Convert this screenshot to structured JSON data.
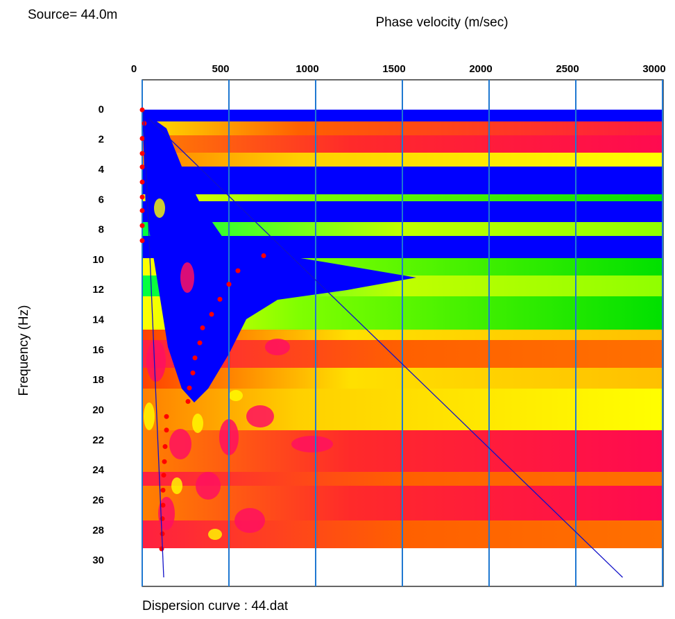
{
  "chart_data": {
    "type": "scatter",
    "title": "Source= 44.0m",
    "x_label": "Phase velocity (m/sec)",
    "y_label": "Frequency (Hz)",
    "caption": "Dispersion curve : 44.dat",
    "xlim": [
      0,
      3000
    ],
    "xticks": [
      0,
      500,
      1000,
      1500,
      2000,
      2500,
      3000
    ],
    "ylim": [
      -2,
      31.7
    ],
    "yticks": [
      0,
      2,
      4,
      6,
      8,
      10,
      12,
      14,
      16,
      18,
      20,
      22,
      24,
      26,
      28,
      30
    ],
    "y_inverted": true,
    "grid": true,
    "grid_color": "#1f78d1",
    "series": [
      {
        "style": "markers",
        "color": "#ff0000",
        "x": [
          0,
          12,
          0,
          0,
          0,
          0,
          0,
          0,
          0,
          0,
          700,
          552,
          500,
          448,
          400,
          348,
          332,
          304,
          292,
          272,
          264,
          140,
          140,
          132,
          128,
          124,
          120,
          120,
          116,
          116,
          112
        ],
        "values": [
          0,
          0.9,
          1.9,
          2.9,
          3.8,
          4.8,
          5.8,
          6.7,
          7.7,
          8.7,
          9.7,
          10.7,
          11.6,
          12.6,
          13.6,
          14.5,
          15.5,
          16.5,
          17.5,
          18.5,
          19.4,
          20.4,
          21.3,
          22.4,
          23.4,
          24.3,
          25.3,
          26.3,
          27.2,
          28.2,
          29.2
        ]
      },
      {
        "style": "line",
        "color": "#1010c8",
        "x": [
          40,
          2770
        ],
        "values": [
          0.6,
          31.1
        ]
      },
      {
        "style": "line",
        "color": "#1010c8",
        "x": [
          8,
          124
        ],
        "values": [
          0.1,
          31.1
        ]
      }
    ]
  }
}
